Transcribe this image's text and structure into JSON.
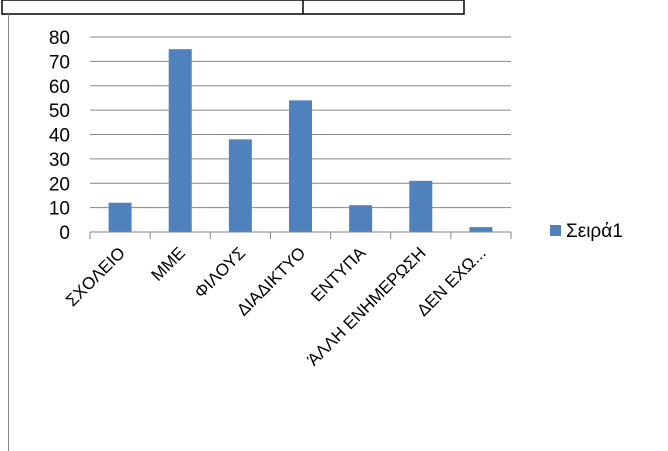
{
  "chart_data": {
    "type": "bar",
    "categories": [
      "ΣΧΟΛΕΙΟ",
      "ΜΜΕ",
      "ΦΙΛΟΥΣ",
      "ΔΙΑΔΙΚΤΥΟ",
      "ΕΝΤΥΠΑ",
      "ΆΛΛΗ ΕΝΗΜΕΡΩΣΗ",
      "ΔΕΝ ΕΧΩ..."
    ],
    "series": [
      {
        "name": "Σειρά1",
        "values": [
          12,
          75,
          38,
          54,
          11,
          21,
          2
        ]
      }
    ],
    "ylim": [
      0,
      80
    ],
    "yticks": [
      "0",
      "10",
      "20",
      "30",
      "40",
      "50",
      "60",
      "70",
      "80"
    ],
    "grid": true,
    "legend": "right",
    "bar_color": "#4f81bd",
    "grid_color": "#868686"
  }
}
